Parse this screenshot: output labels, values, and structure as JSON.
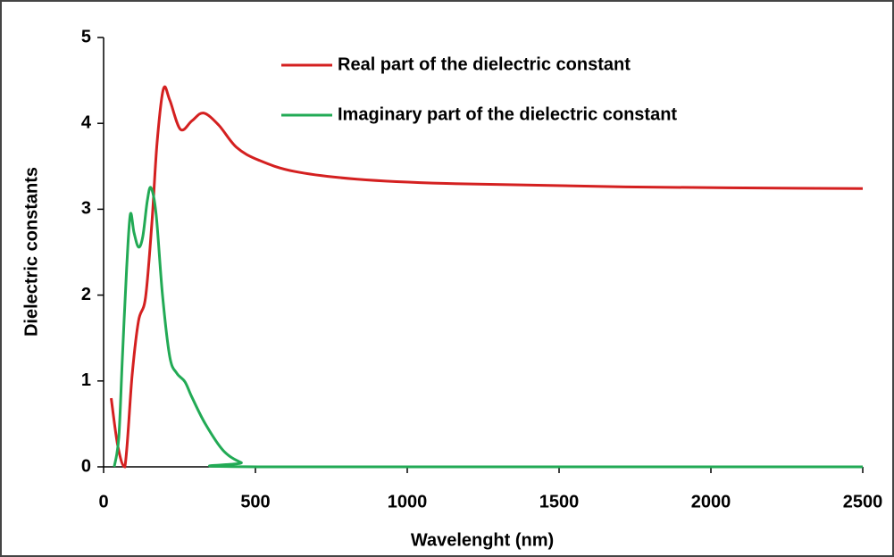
{
  "chart_data": {
    "type": "line",
    "x_label": "Wavelenght (nm)",
    "y_label": "Dielectric constants",
    "xlim": [
      0,
      2500
    ],
    "xticks": [
      0,
      500,
      1000,
      1500,
      2000,
      2500
    ],
    "ylim": [
      0,
      5
    ],
    "yticks": [
      0,
      1,
      2,
      3,
      4,
      5
    ],
    "legend": "top",
    "series": [
      {
        "name": "Real part of the dielectric constant",
        "color": "#d42020",
        "x": [
          25,
          47,
          70,
          94,
          115,
          138,
          159,
          176,
          197,
          218,
          253,
          291,
          329,
          379,
          438,
          512,
          629,
          835,
          1129,
          1718,
          2500
        ],
        "values": [
          0.8,
          0.24,
          0,
          1.07,
          1.7,
          1.97,
          2.84,
          3.77,
          4.4,
          4.27,
          3.93,
          4.03,
          4.12,
          3.98,
          3.72,
          3.57,
          3.44,
          3.35,
          3.3,
          3.26,
          3.24
        ]
      },
      {
        "name": "Imaginary part of the dielectric constant",
        "color": "#22aa55",
        "x": [
          35,
          50,
          62,
          76,
          88,
          100,
          115,
          129,
          144,
          156,
          173,
          194,
          218,
          241,
          268,
          291,
          335,
          394,
          453,
          512,
          2500
        ],
        "values": [
          0,
          0.34,
          1.28,
          2.32,
          2.94,
          2.73,
          2.56,
          2.68,
          3.1,
          3.25,
          2.94,
          2.0,
          1.28,
          1.09,
          0.99,
          0.81,
          0.5,
          0.19,
          0.05,
          0,
          0
        ]
      }
    ]
  }
}
